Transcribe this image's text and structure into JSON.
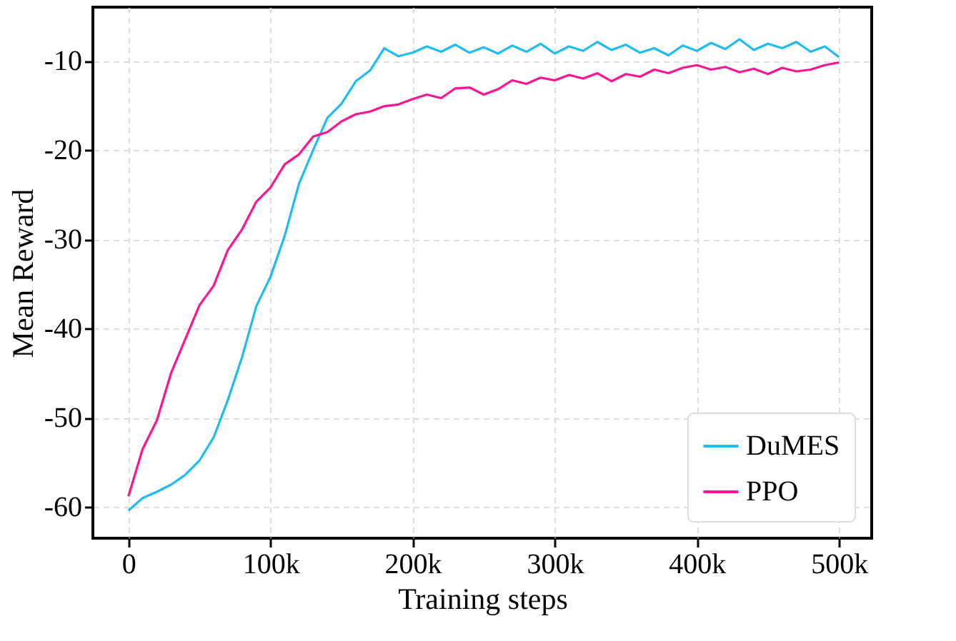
{
  "chart_data": {
    "type": "line",
    "xlabel": "Training steps",
    "ylabel": "Mean Reward",
    "xlim": [
      -25000,
      523000
    ],
    "ylim": [
      -63.5,
      -4
    ],
    "xticks": [
      0,
      {
        "value": 100000,
        "label": "100k"
      },
      {
        "value": 200000,
        "label": "200k"
      },
      {
        "value": 300000,
        "label": "300k"
      },
      {
        "value": 400000,
        "label": "400k"
      },
      {
        "value": 500000,
        "label": "500k"
      }
    ],
    "yticks": [
      -60,
      -50,
      -40,
      -30,
      -20,
      -10
    ],
    "grid": true,
    "legend": "bottom right",
    "line_style": "solid",
    "marker": "none",
    "x": [
      0,
      10000,
      20000,
      30000,
      40000,
      50000,
      60000,
      70000,
      80000,
      90000,
      100000,
      110000,
      120000,
      130000,
      140000,
      150000,
      160000,
      170000,
      180000,
      190000,
      200000,
      210000,
      220000,
      230000,
      240000,
      250000,
      260000,
      270000,
      280000,
      290000,
      300000,
      310000,
      320000,
      330000,
      340000,
      350000,
      360000,
      370000,
      380000,
      390000,
      400000,
      410000,
      420000,
      430000,
      440000,
      450000,
      460000,
      470000,
      480000,
      490000,
      500000
    ],
    "series": [
      {
        "name": "DuMES",
        "color": "#1ebcf5",
        "values": [
          -60.4,
          -59,
          -58.3,
          -57.5,
          -56.4,
          -54.8,
          -52.2,
          -48,
          -43.2,
          -37.5,
          -34.2,
          -29.6,
          -23.8,
          -20,
          -16.4,
          -14.8,
          -12.3,
          -11.1,
          -8.6,
          -9.5,
          -9.1,
          -8.4,
          -9.0,
          -8.2,
          -9.1,
          -8.5,
          -9.2,
          -8.3,
          -9.0,
          -8.1,
          -9.2,
          -8.4,
          -8.9,
          -7.9,
          -8.8,
          -8.2,
          -9.1,
          -8.6,
          -9.4,
          -8.3,
          -8.9,
          -8.0,
          -8.7,
          -7.6,
          -8.8,
          -8.1,
          -8.6,
          -7.9,
          -9.0,
          -8.4,
          -9.6
        ]
      },
      {
        "name": "PPO",
        "color": "#ff1493",
        "values": [
          -58.8,
          -53.5,
          -50.3,
          -45,
          -41.2,
          -37.4,
          -35.2,
          -31.2,
          -28.9,
          -25.8,
          -24.2,
          -21.6,
          -20.5,
          -18.5,
          -18.0,
          -16.8,
          -16.0,
          -15.7,
          -15.1,
          -14.9,
          -14.3,
          -13.8,
          -14.2,
          -13.1,
          -13.0,
          -13.8,
          -13.2,
          -12.2,
          -12.6,
          -11.9,
          -12.2,
          -11.6,
          -12.0,
          -11.4,
          -12.3,
          -11.5,
          -11.8,
          -11.0,
          -11.4,
          -10.8,
          -10.5,
          -11.0,
          -10.7,
          -11.3,
          -10.9,
          -11.5,
          -10.8,
          -11.2,
          -11.0,
          -10.5,
          -10.2
        ]
      }
    ]
  }
}
